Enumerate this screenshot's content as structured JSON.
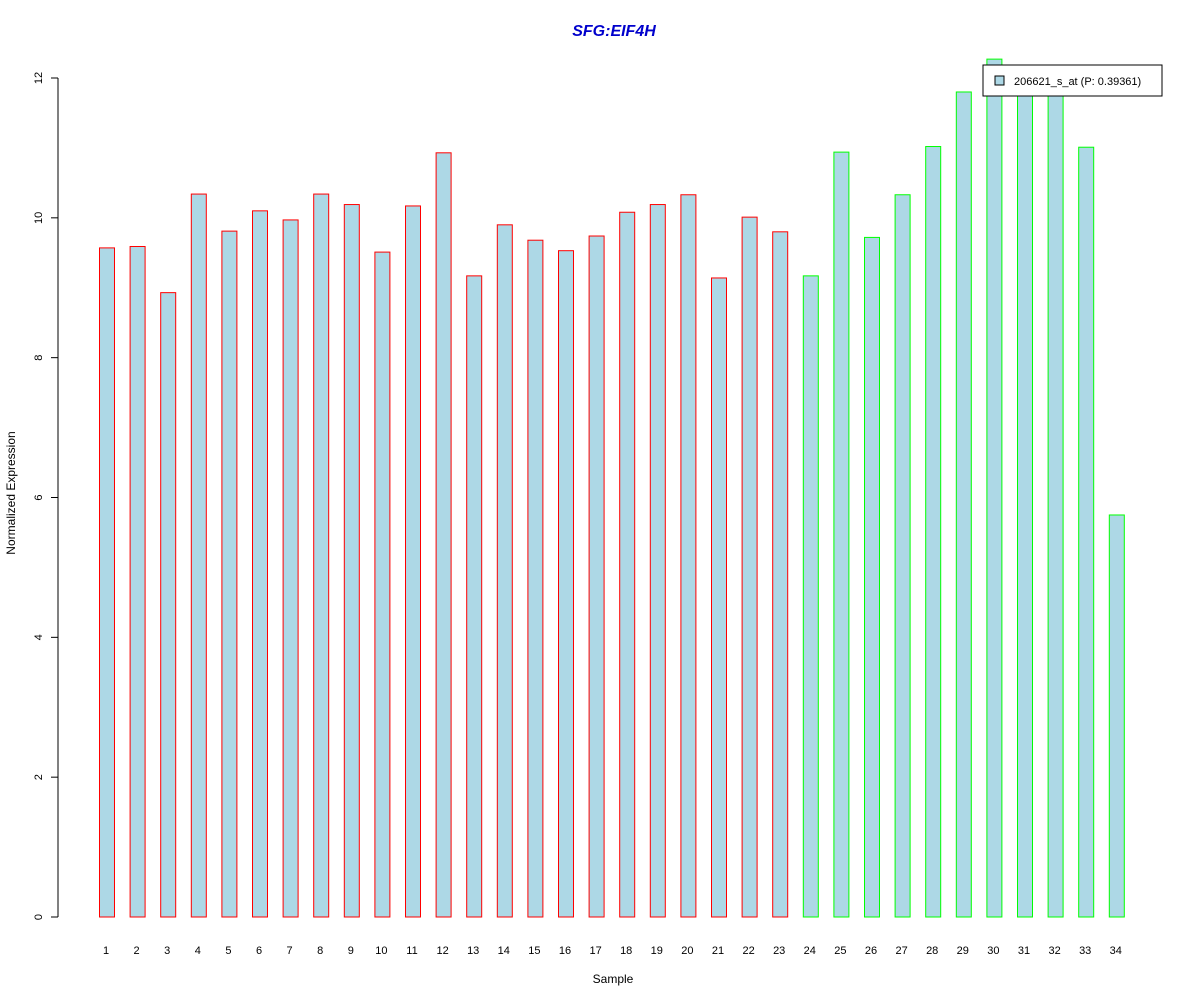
{
  "chart_data": {
    "type": "bar",
    "title": "SFG:EIF4H",
    "xlabel": "Sample",
    "ylabel": "Normalized Expression",
    "ylim": [
      0,
      12
    ],
    "yticks": [
      0,
      2,
      4,
      6,
      8,
      10,
      12
    ],
    "categories": [
      "1",
      "2",
      "3",
      "4",
      "5",
      "6",
      "7",
      "8",
      "9",
      "10",
      "11",
      "12",
      "13",
      "14",
      "15",
      "16",
      "17",
      "18",
      "19",
      "20",
      "21",
      "22",
      "23",
      "24",
      "25",
      "26",
      "27",
      "28",
      "29",
      "30",
      "31",
      "32",
      "33",
      "34"
    ],
    "values": [
      9.57,
      9.59,
      8.93,
      10.34,
      9.81,
      10.1,
      9.97,
      10.34,
      10.19,
      9.51,
      10.17,
      10.93,
      9.17,
      9.9,
      9.68,
      9.53,
      9.74,
      10.08,
      10.19,
      10.33,
      9.14,
      10.01,
      9.8,
      9.17,
      10.94,
      9.72,
      10.33,
      11.02,
      11.8,
      12.27,
      11.8,
      11.85,
      11.01,
      5.75
    ],
    "groups": [
      "a",
      "a",
      "a",
      "a",
      "a",
      "a",
      "a",
      "a",
      "a",
      "a",
      "a",
      "a",
      "a",
      "a",
      "a",
      "a",
      "a",
      "a",
      "a",
      "a",
      "a",
      "a",
      "a",
      "b",
      "b",
      "b",
      "b",
      "b",
      "b",
      "b",
      "b",
      "b",
      "b",
      "b"
    ],
    "legend": {
      "label": "206621_s_at (P: 0.39361)",
      "position": "top-right"
    },
    "colors": {
      "fill": "#add8e6",
      "border_group_a": "#ff0000",
      "border_group_b": "#00ff00",
      "title": "#0000cc",
      "axis": "#000000"
    },
    "grid": false
  }
}
